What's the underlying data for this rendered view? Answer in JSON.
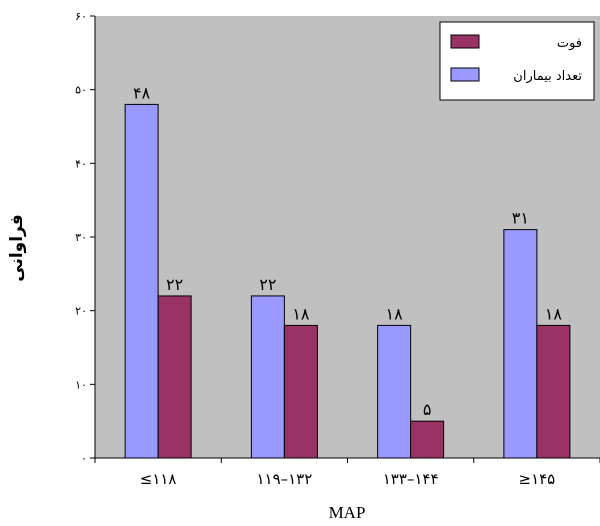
{
  "chart_data": {
    "type": "bar",
    "categories": [
      "≤۱۱۸",
      "۱۱۹–۱۳۲",
      "۱۳۳–۱۴۴",
      "≥۱۴۵"
    ],
    "series": [
      {
        "name": "تعداد بیماران",
        "values": [
          48,
          22,
          18,
          31
        ],
        "labels": [
          "۴۸",
          "۲۲",
          "۱۸",
          "۳۱"
        ],
        "color": "#9999ff"
      },
      {
        "name": "فوت",
        "values": [
          22,
          18,
          5,
          18
        ],
        "labels": [
          "۲۲",
          "۱۸",
          "۵",
          "۱۸"
        ],
        "color": "#993366"
      }
    ],
    "xlabel": "MAP",
    "ylabel": "فراوانی",
    "ylim": [
      0,
      60
    ],
    "yticks": [
      0,
      10,
      20,
      30,
      40,
      50,
      60
    ],
    "ytick_labels": [
      "۰",
      "۱۰",
      "۲۰",
      "۳۰",
      "۴۰",
      "۵۰",
      "۶۰"
    ],
    "grid": false,
    "legend_position": "top-right",
    "background_color": "#c0c0c0"
  }
}
